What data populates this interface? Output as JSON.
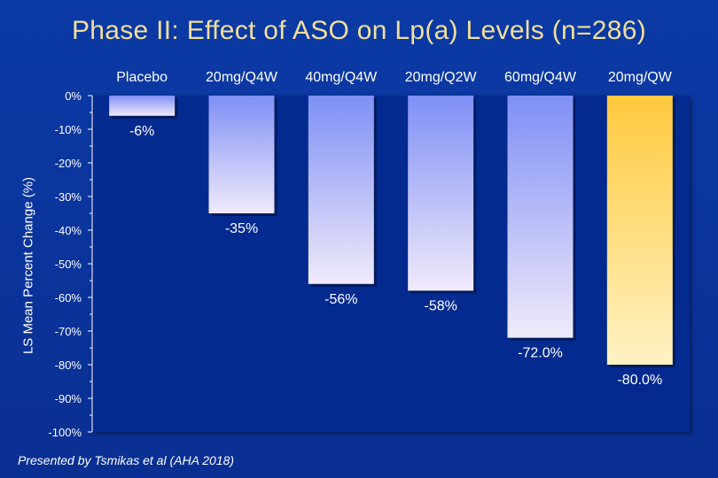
{
  "title": "Phase II: Effect of ASO on Lp(a) Levels (n=286)",
  "footnote": "Presented by Tsmikas et al (AHA 2018)",
  "colors": {
    "background": "#0b3aa6",
    "plot_area": "#032a8f",
    "title": "#f2df9a",
    "bar_gradient_top": "#7f8ff5",
    "bar_gradient_bottom": "#f0eafa",
    "highlight_top": "#ffc93e",
    "highlight_bottom": "#fff2c4",
    "text": "#ffffff"
  },
  "chart_data": {
    "type": "bar",
    "title": "Phase II: Effect of ASO on Lp(a) Levels (n=286)",
    "ylabel": "LS Mean Percent Change (%)",
    "xlabel": "",
    "ylim": [
      -100,
      0
    ],
    "yticks": [
      0,
      -10,
      -20,
      -30,
      -40,
      -50,
      -60,
      -70,
      -80,
      -90,
      -100
    ],
    "ytick_labels": [
      "0%",
      "-10%",
      "-20%",
      "-30%",
      "-40%",
      "-50%",
      "-60%",
      "-70%",
      "-80%",
      "-90%",
      "-100%"
    ],
    "categories": [
      "Placebo",
      "20mg/Q4W",
      "40mg/Q4W",
      "20mg/Q2W",
      "60mg/Q4W",
      "20mg/QW"
    ],
    "values": [
      -6,
      -35,
      -56,
      -58,
      -72.0,
      -80.0
    ],
    "value_labels": [
      "-6%",
      "-35%",
      "-56%",
      "-58%",
      "-72.0%",
      "-80.0%"
    ],
    "highlight_index": 5,
    "grid": false,
    "legend": false
  }
}
